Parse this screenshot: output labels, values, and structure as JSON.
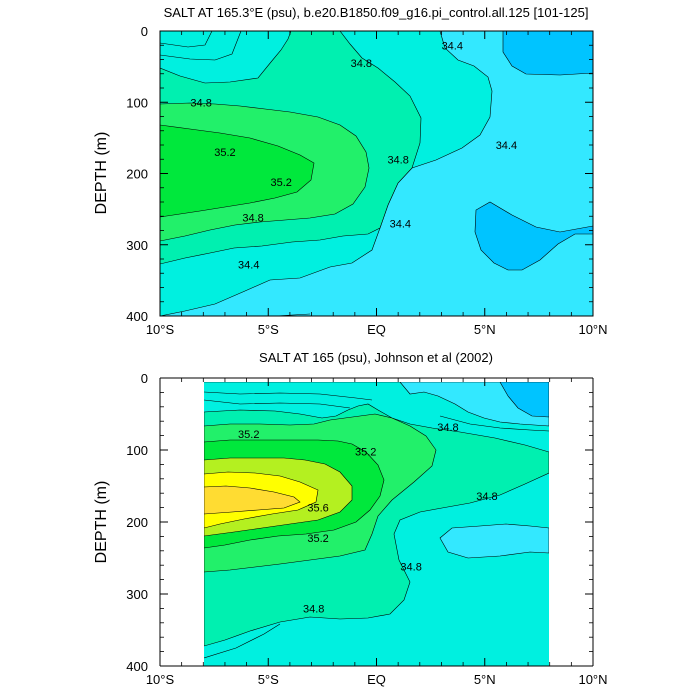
{
  "chart_data": [
    {
      "type": "contour",
      "title": "SALT AT 165.3°E (psu), b.e20.B1850.f09_g16.pi_control.all.125 [101-125]",
      "ylabel": "DEPTH (m)",
      "xlim": [
        -10,
        10
      ],
      "ylim": [
        0,
        400
      ],
      "y_inverted": true,
      "xticks": [
        -10,
        -5,
        0,
        5,
        10
      ],
      "xtick_labels": [
        "10°S",
        "5°S",
        "EQ",
        "5°N",
        "10°N"
      ],
      "yticks": [
        0,
        100,
        200,
        300,
        400
      ],
      "ytick_labels": [
        "0",
        "100",
        "200",
        "300",
        "400"
      ],
      "data_range": [
        -10,
        10
      ],
      "contour_levels": [
        34.2,
        34.4,
        34.6,
        34.8,
        35.0,
        35.2
      ],
      "contour_labels": [
        {
          "text": "34.8",
          "x": -8.1,
          "y": 100
        },
        {
          "text": "34.8",
          "x": -0.7,
          "y": 45
        },
        {
          "text": "34.4",
          "x": 3.5,
          "y": 20
        },
        {
          "text": "35.2",
          "x": -7.0,
          "y": 170
        },
        {
          "text": "35.2",
          "x": -4.4,
          "y": 212
        },
        {
          "text": "34.8",
          "x": 1.0,
          "y": 180
        },
        {
          "text": "34.4",
          "x": 6.0,
          "y": 160
        },
        {
          "text": "34.8",
          "x": -5.7,
          "y": 262
        },
        {
          "text": "34.4",
          "x": 1.1,
          "y": 270
        },
        {
          "text": "34.4",
          "x": -5.9,
          "y": 328
        }
      ]
    },
    {
      "type": "contour",
      "title": "SALT AT 165 (psu), Johnson et al (2002)",
      "ylabel": "DEPTH (m)",
      "xlim": [
        -10,
        10
      ],
      "ylim": [
        0,
        400
      ],
      "y_inverted": true,
      "xticks": [
        -10,
        -5,
        0,
        5,
        10
      ],
      "xtick_labels": [
        "10°S",
        "5°S",
        "EQ",
        "5°N",
        "10°N"
      ],
      "yticks": [
        0,
        100,
        200,
        300,
        400
      ],
      "ytick_labels": [
        "0",
        "100",
        "200",
        "300",
        "400"
      ],
      "data_range": [
        -8,
        8
      ],
      "contour_levels": [
        34.4,
        34.6,
        34.8,
        35.0,
        35.2,
        35.4,
        35.6,
        35.8
      ],
      "contour_labels": [
        {
          "text": "35.2",
          "x": -5.9,
          "y": 78
        },
        {
          "text": "35.2",
          "x": -0.5,
          "y": 102
        },
        {
          "text": "34.8",
          "x": 3.3,
          "y": 68
        },
        {
          "text": "35.6",
          "x": -2.7,
          "y": 180
        },
        {
          "text": "34.8",
          "x": 5.1,
          "y": 164
        },
        {
          "text": "35.2",
          "x": -2.7,
          "y": 222
        },
        {
          "text": "34.8",
          "x": 1.6,
          "y": 262
        },
        {
          "text": "34.8",
          "x": -2.9,
          "y": 320
        }
      ]
    }
  ],
  "colors": {
    "s_34_2": "#00c4ff",
    "s_34_4": "#33e8ff",
    "s_34_6": "#00f0e0",
    "s_34_8": "#00f0b0",
    "s_35_0": "#22f06a",
    "s_35_2": "#00e83c",
    "s_35_4": "#b4f020",
    "s_35_6": "#ffff00",
    "s_35_8": "#ffdc32"
  }
}
